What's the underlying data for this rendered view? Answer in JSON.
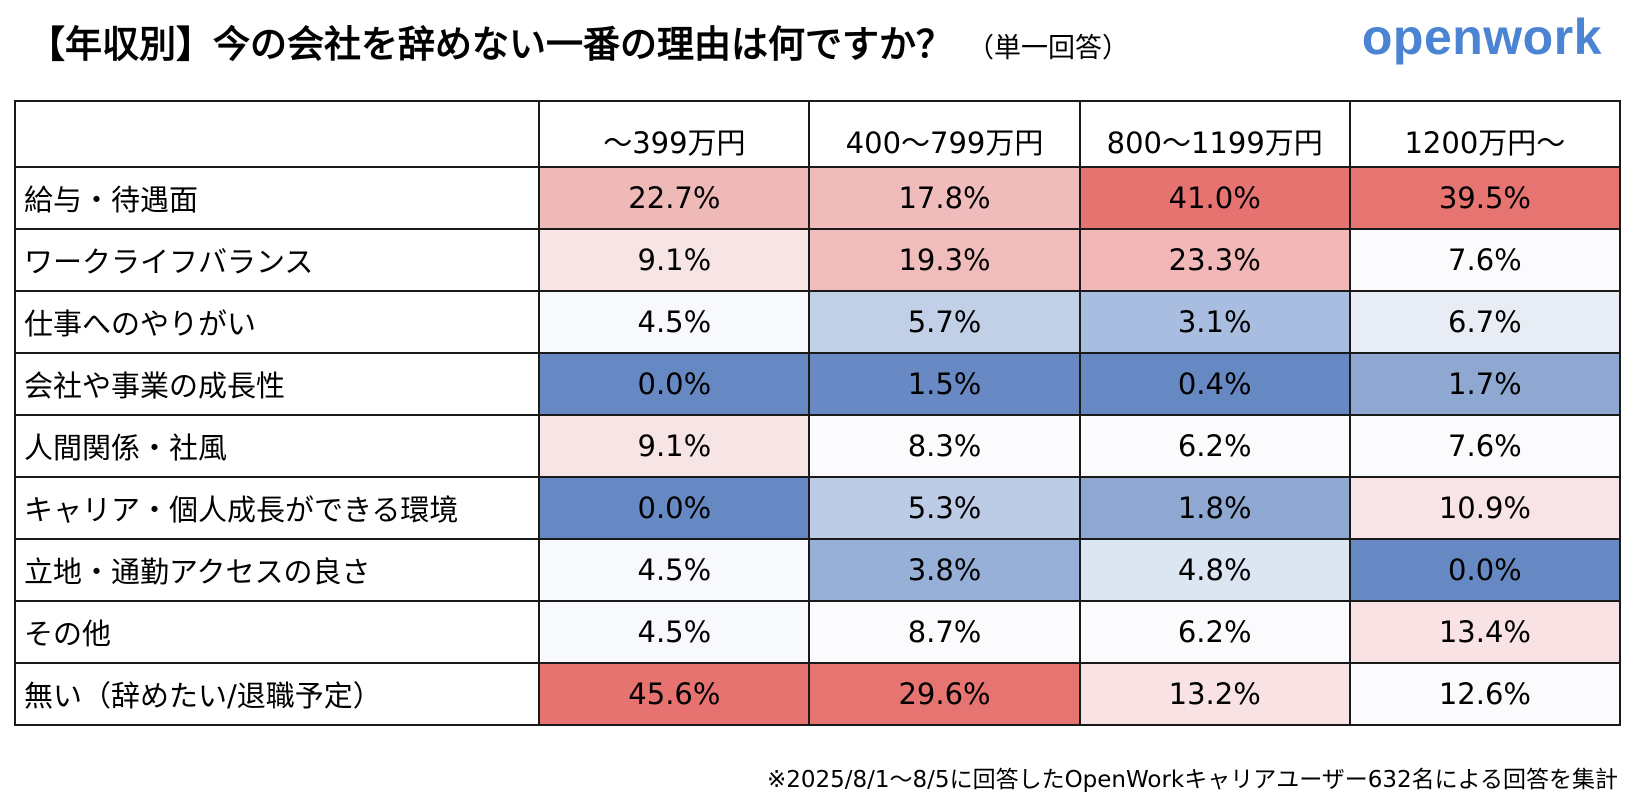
{
  "title": "【年収別】今の会社を辞めない一番の理由は何ですか？",
  "subtitle": "（単一回答）",
  "logo": "openwork",
  "footnote": "※2025/8/1～8/5に回答したOpenWorkキャリアユーザー632名による回答を集計",
  "colors": {
    "red_strong": "#e67370",
    "red_mid": "#efb9b8",
    "red_light": "#f7e4e5",
    "blue_strong": "#6689c4",
    "blue_mid": "#8ea8d2",
    "blue_light": "#c1d0e7",
    "neutral": "#fafbfd"
  },
  "chart_data": {
    "type": "table",
    "title": "【年収別】今の会社を辞めない一番の理由は何ですか？",
    "subtitle": "（単一回答）",
    "columns": [
      "～399万円",
      "400～799万円",
      "800～1199万円",
      "1200万円～"
    ],
    "rows": [
      {
        "label": "給与・待遇面",
        "values": [
          "22.7%",
          "17.8%",
          "41.0%",
          "39.5%"
        ],
        "colors": [
          "#efb9b8",
          "#efbcbb",
          "#e67370",
          "#e67471"
        ]
      },
      {
        "label": "ワークライフバランス",
        "values": [
          "9.1%",
          "19.3%",
          "23.3%",
          "7.6%"
        ],
        "colors": [
          "#f7e4e5",
          "#f0bcbc",
          "#f1b8b7",
          "#fbfbfd"
        ]
      },
      {
        "label": "仕事へのやりがい",
        "values": [
          "4.5%",
          "5.7%",
          "3.1%",
          "6.7%"
        ],
        "colors": [
          "#f8f9fc",
          "#c1d0e7",
          "#a9bde0",
          "#e8edf5"
        ]
      },
      {
        "label": "会社や事業の成長性",
        "values": [
          "0.0%",
          "1.5%",
          "0.4%",
          "1.7%"
        ],
        "colors": [
          "#6689c4",
          "#6889c4",
          "#6689c4",
          "#8ea8d2"
        ]
      },
      {
        "label": "人間関係・社風",
        "values": [
          "9.1%",
          "8.3%",
          "6.2%",
          "7.6%"
        ],
        "colors": [
          "#f7e4e5",
          "#fbfbfd",
          "#fbfbfd",
          "#fbfbfd"
        ]
      },
      {
        "label": "キャリア・個人成長ができる環境",
        "values": [
          "0.0%",
          "5.3%",
          "1.8%",
          "10.9%"
        ],
        "colors": [
          "#6689c4",
          "#bccce6",
          "#8ea8d2",
          "#f8e4e6"
        ]
      },
      {
        "label": "立地・通勤アクセスの良さ",
        "values": [
          "4.5%",
          "3.8%",
          "4.8%",
          "0.0%"
        ],
        "colors": [
          "#f8f9fc",
          "#97b0d8",
          "#dce5f2",
          "#6689c4"
        ]
      },
      {
        "label": "その他",
        "values": [
          "4.5%",
          "8.7%",
          "6.2%",
          "13.4%"
        ],
        "colors": [
          "#f8f9fc",
          "#fbfbfd",
          "#fbfbfd",
          "#f8e2e3"
        ]
      },
      {
        "label": "無い（辞めたい/退職予定）",
        "values": [
          "45.6%",
          "29.6%",
          "13.2%",
          "12.6%"
        ],
        "colors": [
          "#e67370",
          "#e67471",
          "#f8e2e3",
          "#fbfbfd"
        ]
      }
    ]
  }
}
